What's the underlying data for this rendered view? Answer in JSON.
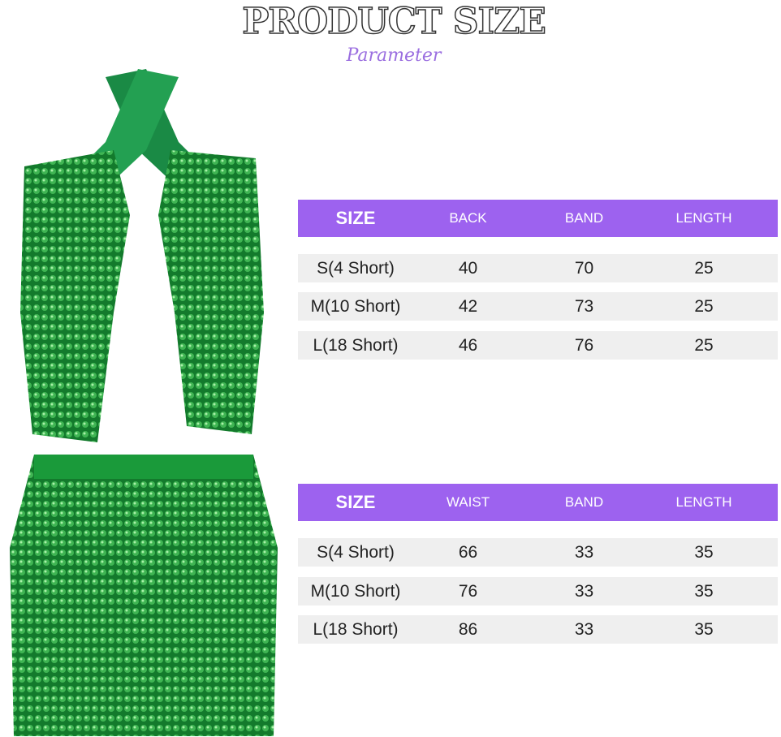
{
  "header": {
    "title": "PRODUCT SIZE",
    "subtitle": "Parameter"
  },
  "colors": {
    "header_bg": "#9d62ef",
    "row_bg": "#efefef",
    "product": "#1f8a3a"
  },
  "tables": [
    {
      "columns": [
        "SIZE",
        "BACK",
        "BAND",
        "LENGTH"
      ],
      "rows": [
        [
          "S(4 Short)",
          "40",
          "70",
          "25"
        ],
        [
          "M(10 Short)",
          "42",
          "73",
          "25"
        ],
        [
          "L(18 Short)",
          "46",
          "76",
          "25"
        ]
      ]
    },
    {
      "columns": [
        "SIZE",
        "WAIST",
        "BAND",
        "LENGTH"
      ],
      "rows": [
        [
          "S(4 Short)",
          "66",
          "33",
          "35"
        ],
        [
          "M(10 Short)",
          "76",
          "33",
          "35"
        ],
        [
          "L(18 Short)",
          "86",
          "33",
          "35"
        ]
      ]
    }
  ]
}
